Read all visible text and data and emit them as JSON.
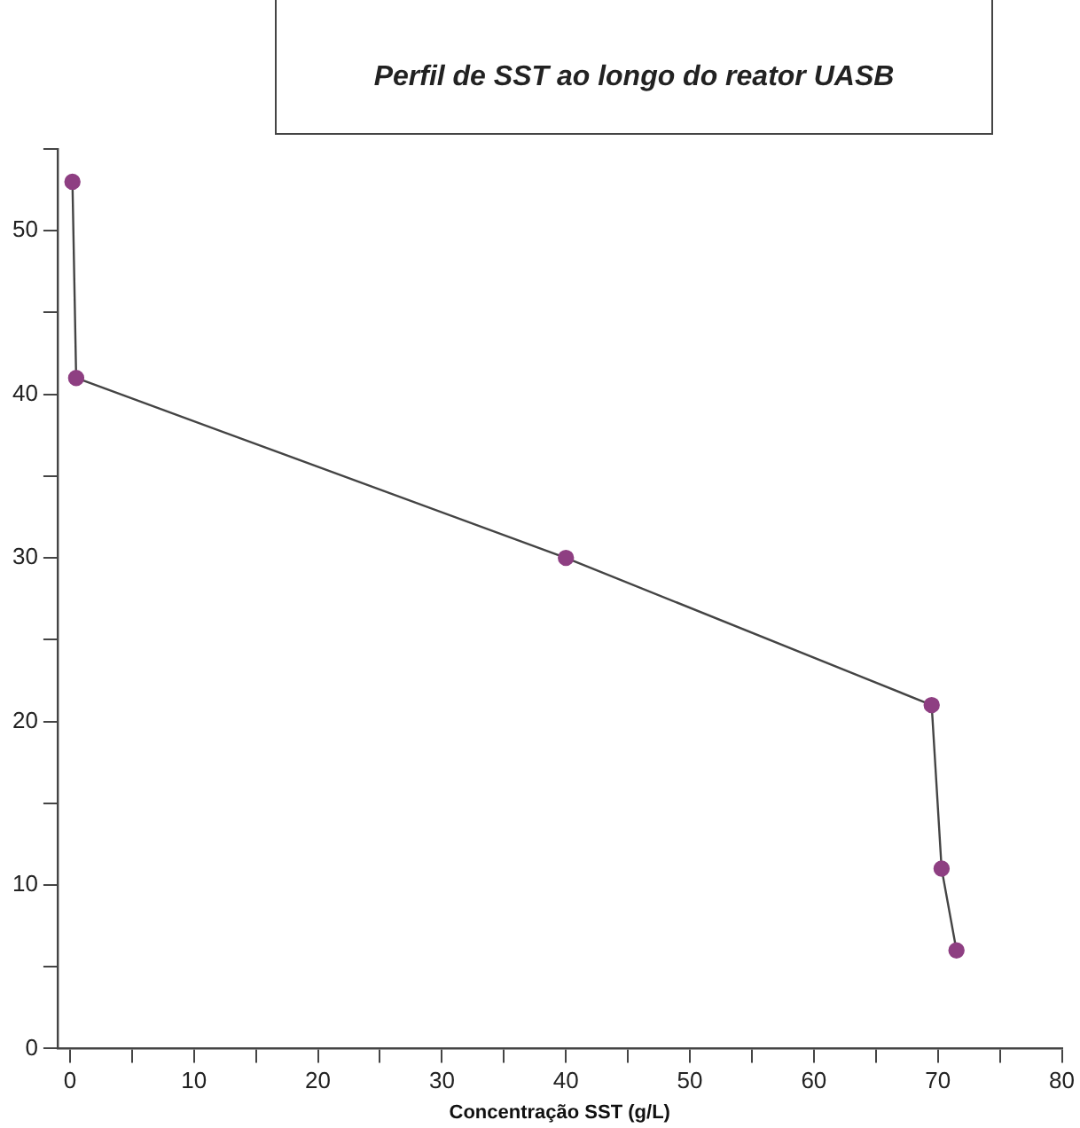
{
  "chart_data": {
    "type": "line",
    "title": "Perfil de SST ao longo do reator UASB",
    "xlabel": "Concentração SST (g/L)",
    "x": [
      0.2,
      0.5,
      40,
      69.5,
      70.3,
      71.5
    ],
    "series": [
      {
        "color": "#8e3f82",
        "values": [
          53,
          41,
          30,
          21,
          11,
          6
        ]
      }
    ],
    "xlim": [
      -1,
      80
    ],
    "xticks": [
      0,
      {
        "value": 5,
        "label": null
      },
      10,
      {
        "value": 15,
        "label": null
      },
      20,
      {
        "value": 25,
        "label": null
      },
      30,
      {
        "value": 35,
        "label": null
      },
      40,
      {
        "value": 45,
        "label": null
      },
      50,
      {
        "value": 55,
        "label": null
      },
      60,
      {
        "value": 65,
        "label": null
      },
      70,
      {
        "value": 75,
        "label": null
      },
      80
    ],
    "ylim": [
      0,
      55
    ],
    "yticks": [
      0,
      {
        "value": 5,
        "label": null
      },
      10,
      {
        "value": 15,
        "label": null
      },
      20,
      {
        "value": 25,
        "label": null
      },
      30,
      {
        "value": 35,
        "label": null
      },
      40,
      {
        "value": 45,
        "label": null
      },
      50,
      {
        "value": 55,
        "label": null
      }
    ],
    "grid": false,
    "legend": false,
    "marker": "circle",
    "line_style": "solid"
  }
}
